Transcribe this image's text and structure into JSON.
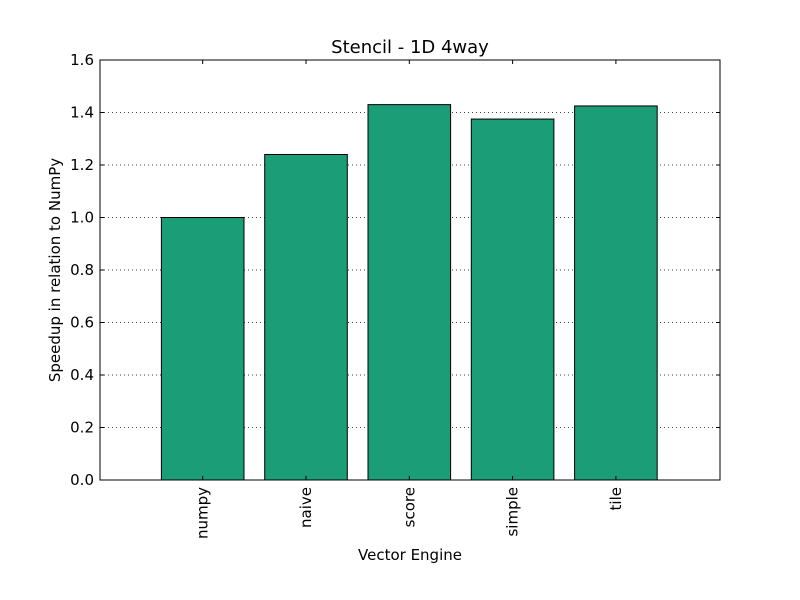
{
  "chart_data": {
    "type": "bar",
    "title": "Stencil - 1D 4way",
    "xlabel": "Vector Engine",
    "ylabel": "Speedup in relation to NumPy",
    "categories": [
      "numpy",
      "naive",
      "score",
      "simple",
      "tile"
    ],
    "values": [
      1.0,
      1.24,
      1.43,
      1.375,
      1.425
    ],
    "ylim": [
      0,
      1.6
    ],
    "yticks": [
      "0.0",
      "0.2",
      "0.4",
      "0.6",
      "0.8",
      "1.0",
      "1.2",
      "1.4",
      "1.6"
    ],
    "grid": "y-dotted",
    "legend": "none",
    "bar_color": "#1b9e77"
  }
}
